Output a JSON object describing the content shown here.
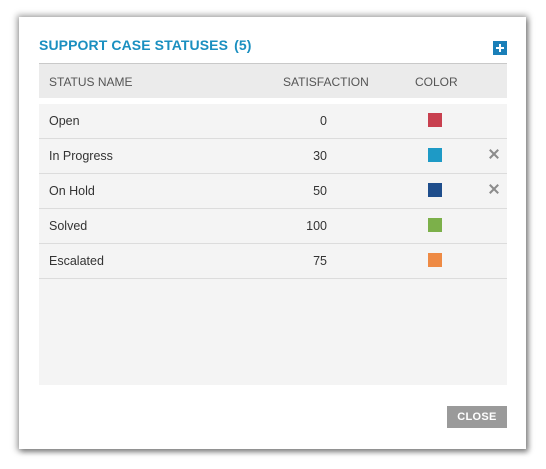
{
  "dialog": {
    "title": "SUPPORT CASE STATUSES",
    "count": "(5)",
    "add_icon": "plus-square-icon",
    "accent_color": "#1a8fc0"
  },
  "table": {
    "columns": [
      "STATUS NAME",
      "SATISFACTION",
      "COLOR"
    ],
    "rows": [
      {
        "name": "Open",
        "satisfaction": "0",
        "color": "#c8404f",
        "deletable": false
      },
      {
        "name": "In Progress",
        "satisfaction": "30",
        "color": "#1e9ac6",
        "deletable": true
      },
      {
        "name": "On Hold",
        "satisfaction": "50",
        "color": "#1f4e8c",
        "deletable": true
      },
      {
        "name": "Solved",
        "satisfaction": "100",
        "color": "#7cb04a",
        "deletable": false
      },
      {
        "name": "Escalated",
        "satisfaction": "75",
        "color": "#ee8a44",
        "deletable": false
      }
    ],
    "delete_icon": "close-icon"
  },
  "footer": {
    "close_label": "CLOSE"
  }
}
